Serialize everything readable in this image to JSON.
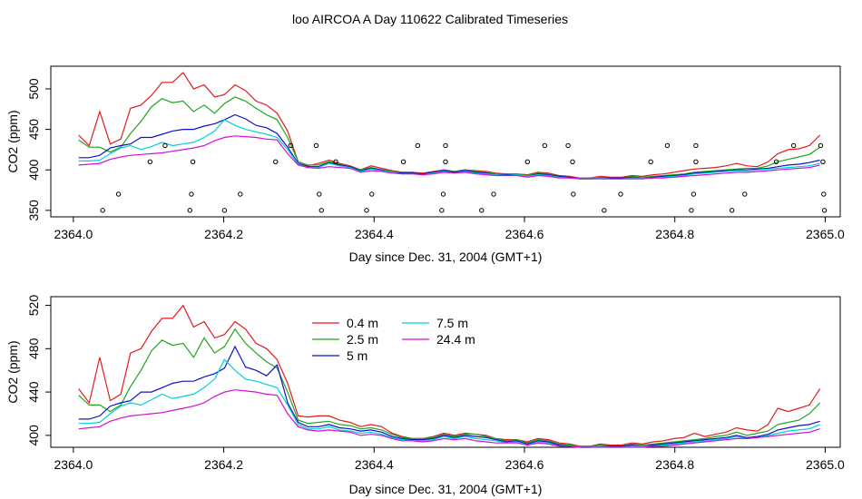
{
  "title": "loo AIRCOA A  Day 110622  Calibrated Timeseries",
  "colors": {
    "series": [
      "#e31a1c",
      "#1fa51f",
      "#1010cc",
      "#00d2d2",
      "#d60fd6"
    ],
    "points": "#000000"
  },
  "chart_data": [
    {
      "type": "line",
      "xlabel": "Day since Dec. 31, 2004 (GMT+1)",
      "ylabel": "CO2 (ppm)",
      "xlim": [
        2363.97,
        2365.02
      ],
      "ylim": [
        342,
        528
      ],
      "xticks": [
        "2364.0",
        "2364.2",
        "2364.4",
        "2364.6",
        "2364.8",
        "2365.0"
      ],
      "yticks": [
        "350",
        "400",
        "450",
        "500"
      ],
      "xtick_values": [
        2364.0,
        2364.2,
        2364.4,
        2364.6,
        2364.8,
        2365.0
      ],
      "ytick_values": [
        350,
        400,
        450,
        500
      ],
      "grid": false,
      "legend": false,
      "x": [
        2364.007,
        2364.021,
        2364.035,
        2364.049,
        2364.063,
        2364.076,
        2364.09,
        2364.104,
        2364.118,
        2364.132,
        2364.146,
        2364.16,
        2364.174,
        2364.188,
        2364.201,
        2364.215,
        2364.229,
        2364.243,
        2364.257,
        2364.271,
        2364.285,
        2364.299,
        2364.312,
        2364.326,
        2364.34,
        2364.354,
        2364.368,
        2364.382,
        2364.396,
        2364.41,
        2364.424,
        2364.437,
        2364.451,
        2364.465,
        2364.479,
        2364.493,
        2364.507,
        2364.521,
        2364.535,
        2364.549,
        2364.562,
        2364.576,
        2364.59,
        2364.604,
        2364.618,
        2364.632,
        2364.646,
        2364.66,
        2364.674,
        2364.687,
        2364.701,
        2364.715,
        2364.729,
        2364.743,
        2364.757,
        2364.771,
        2364.785,
        2364.799,
        2364.812,
        2364.826,
        2364.84,
        2364.854,
        2364.868,
        2364.882,
        2364.896,
        2364.91,
        2364.924,
        2364.937,
        2364.951,
        2364.965,
        2364.979,
        2364.993
      ],
      "series": [
        {
          "values": [
            443,
            430,
            472,
            432,
            438,
            476,
            480,
            492,
            508,
            508,
            520,
            500,
            505,
            490,
            493,
            505,
            498,
            485,
            480,
            470,
            448,
            410,
            405,
            408,
            412,
            408,
            405,
            400,
            405,
            402,
            399,
            397,
            397,
            396,
            398,
            400,
            398,
            400,
            399,
            398,
            396,
            395,
            395,
            394,
            397,
            396,
            393,
            392,
            390,
            390,
            392,
            391,
            391,
            393,
            392,
            394,
            395,
            397,
            399,
            401,
            402,
            403,
            405,
            408,
            405,
            404,
            410,
            420,
            425,
            426,
            430,
            443
          ]
        },
        {
          "values": [
            437,
            428,
            428,
            422,
            428,
            445,
            460,
            478,
            488,
            483,
            485,
            472,
            480,
            470,
            482,
            490,
            485,
            476,
            468,
            462,
            440,
            410,
            406,
            406,
            410,
            407,
            404,
            400,
            403,
            400,
            398,
            396,
            396,
            395,
            397,
            399,
            398,
            400,
            398,
            397,
            395,
            394,
            395,
            393,
            396,
            395,
            392,
            391,
            390,
            390,
            391,
            390,
            390,
            392,
            391,
            392,
            393,
            394,
            395,
            397,
            398,
            399,
            400,
            401,
            402,
            402,
            405,
            410,
            413,
            416,
            419,
            428
          ]
        },
        {
          "values": [
            415,
            415,
            418,
            427,
            430,
            432,
            440,
            440,
            444,
            448,
            450,
            450,
            454,
            457,
            462,
            468,
            463,
            455,
            452,
            445,
            428,
            408,
            404,
            404,
            409,
            406,
            404,
            399,
            402,
            400,
            397,
            396,
            396,
            395,
            397,
            399,
            397,
            399,
            397,
            396,
            394,
            394,
            394,
            392,
            395,
            394,
            392,
            391,
            389,
            389,
            390,
            390,
            390,
            391,
            390,
            391,
            392,
            393,
            394,
            396,
            397,
            398,
            399,
            400,
            400,
            401,
            402,
            404,
            406,
            407,
            409,
            412
          ]
        },
        {
          "values": [
            411,
            411,
            412,
            420,
            427,
            430,
            425,
            429,
            434,
            430,
            432,
            434,
            440,
            448,
            462,
            455,
            450,
            447,
            444,
            440,
            425,
            407,
            403,
            403,
            408,
            405,
            403,
            398,
            401,
            399,
            397,
            395,
            395,
            394,
            396,
            398,
            396,
            398,
            396,
            395,
            394,
            393,
            394,
            392,
            394,
            393,
            391,
            390,
            389,
            389,
            390,
            389,
            389,
            390,
            390,
            390,
            391,
            392,
            393,
            395,
            396,
            397,
            398,
            399,
            399,
            400,
            401,
            402,
            403,
            404,
            405,
            408
          ]
        },
        {
          "values": [
            406,
            407,
            408,
            413,
            416,
            418,
            419,
            420,
            421,
            423,
            425,
            427,
            430,
            436,
            440,
            442,
            441,
            440,
            438,
            437,
            420,
            406,
            403,
            402,
            404,
            403,
            402,
            397,
            399,
            398,
            396,
            395,
            395,
            394,
            395,
            397,
            396,
            397,
            395,
            394,
            393,
            393,
            393,
            391,
            393,
            392,
            390,
            390,
            389,
            389,
            389,
            389,
            389,
            389,
            389,
            390,
            390,
            391,
            392,
            393,
            394,
            395,
            396,
            397,
            397,
            398,
            399,
            400,
            401,
            402,
            403,
            406
          ]
        }
      ],
      "points": {
        "x": [
          2364.039,
          2364.06,
          2364.102,
          2364.122,
          2364.155,
          2364.157,
          2364.159,
          2364.201,
          2364.222,
          2364.269,
          2364.289,
          2364.323,
          2364.327,
          2364.33,
          2364.349,
          2364.39,
          2364.397,
          2364.439,
          2364.458,
          2364.49,
          2364.492,
          2364.495,
          2364.495,
          2364.543,
          2364.559,
          2364.604,
          2364.627,
          2364.658,
          2364.664,
          2364.665,
          2364.706,
          2364.728,
          2364.768,
          2364.79,
          2364.822,
          2364.825,
          2364.828,
          2364.828,
          2364.876,
          2364.893,
          2364.935,
          2364.958,
          2364.994,
          2364.997,
          2364.998,
          2364.999
        ],
        "y": [
          350,
          370,
          410,
          430,
          350,
          370,
          410,
          350,
          370,
          410,
          430,
          430,
          370,
          350,
          410,
          350,
          370,
          410,
          430,
          350,
          370,
          410,
          430,
          350,
          370,
          410,
          430,
          430,
          410,
          370,
          350,
          370,
          410,
          430,
          350,
          370,
          410,
          430,
          350,
          370,
          410,
          430,
          430,
          410,
          370,
          350
        ]
      }
    },
    {
      "type": "line",
      "xlabel": "Day since Dec. 31, 2004 (GMT+1)",
      "ylabel": "CO2 (ppm)",
      "xlim": [
        2363.97,
        2365.02
      ],
      "ylim": [
        389,
        528
      ],
      "xticks": [
        "2364.0",
        "2364.2",
        "2364.4",
        "2364.6",
        "2364.8",
        "2365.0"
      ],
      "yticks": [
        "400",
        "440",
        "480",
        "520"
      ],
      "xtick_values": [
        2364.0,
        2364.2,
        2364.4,
        2364.6,
        2364.8,
        2365.0
      ],
      "ytick_values": [
        400,
        440,
        480,
        520
      ],
      "grid": false,
      "legend": "top-center",
      "legend_labels": [
        "0.4 m",
        "2.5 m",
        "5 m",
        "7.5 m",
        "24.4 m"
      ],
      "x": [
        2364.007,
        2364.021,
        2364.035,
        2364.049,
        2364.063,
        2364.076,
        2364.09,
        2364.104,
        2364.118,
        2364.132,
        2364.146,
        2364.16,
        2364.174,
        2364.188,
        2364.201,
        2364.215,
        2364.229,
        2364.243,
        2364.257,
        2364.271,
        2364.285,
        2364.299,
        2364.312,
        2364.326,
        2364.34,
        2364.354,
        2364.368,
        2364.382,
        2364.396,
        2364.41,
        2364.424,
        2364.437,
        2364.451,
        2364.465,
        2364.479,
        2364.493,
        2364.507,
        2364.521,
        2364.535,
        2364.549,
        2364.562,
        2364.576,
        2364.59,
        2364.604,
        2364.618,
        2364.632,
        2364.646,
        2364.66,
        2364.674,
        2364.687,
        2364.701,
        2364.715,
        2364.729,
        2364.743,
        2364.757,
        2364.771,
        2364.785,
        2364.799,
        2364.812,
        2364.826,
        2364.84,
        2364.854,
        2364.868,
        2364.882,
        2364.896,
        2364.91,
        2364.924,
        2364.937,
        2364.951,
        2364.965,
        2364.979,
        2364.993
      ],
      "series": [
        {
          "name": "0.4 m",
          "values": [
            443,
            430,
            472,
            432,
            438,
            476,
            480,
            496,
            508,
            508,
            520,
            500,
            505,
            490,
            493,
            505,
            498,
            485,
            480,
            470,
            448,
            418,
            417,
            418,
            418,
            414,
            412,
            408,
            410,
            408,
            402,
            399,
            397,
            397,
            399,
            402,
            400,
            402,
            401,
            400,
            397,
            396,
            396,
            394,
            397,
            396,
            393,
            392,
            390,
            390,
            392,
            391,
            391,
            393,
            392,
            394,
            395,
            397,
            398,
            402,
            399,
            401,
            403,
            407,
            405,
            404,
            410,
            425,
            422,
            425,
            428,
            443
          ]
        },
        {
          "name": "2.5 m",
          "values": [
            437,
            428,
            428,
            422,
            428,
            445,
            460,
            478,
            488,
            483,
            485,
            472,
            490,
            476,
            482,
            498,
            485,
            476,
            468,
            462,
            440,
            414,
            411,
            412,
            413,
            410,
            409,
            406,
            407,
            405,
            401,
            398,
            397,
            397,
            398,
            401,
            399,
            401,
            401,
            399,
            397,
            395,
            396,
            393,
            396,
            395,
            392,
            391,
            390,
            390,
            391,
            390,
            390,
            392,
            391,
            392,
            393,
            394,
            395,
            396,
            397,
            399,
            400,
            403,
            400,
            402,
            404,
            410,
            412,
            414,
            420,
            430
          ]
        },
        {
          "name": "5 m",
          "values": [
            415,
            415,
            418,
            427,
            430,
            432,
            440,
            440,
            444,
            448,
            450,
            450,
            454,
            457,
            462,
            482,
            463,
            460,
            455,
            465,
            430,
            412,
            408,
            408,
            410,
            407,
            406,
            404,
            405,
            403,
            399,
            397,
            396,
            396,
            397,
            400,
            398,
            400,
            399,
            398,
            396,
            394,
            395,
            392,
            395,
            394,
            391,
            390,
            389,
            389,
            390,
            390,
            390,
            391,
            390,
            391,
            392,
            393,
            394,
            395,
            396,
            397,
            398,
            400,
            398,
            399,
            401,
            405,
            407,
            409,
            410,
            413
          ]
        },
        {
          "name": "7.5 m",
          "values": [
            411,
            411,
            412,
            420,
            427,
            430,
            428,
            433,
            438,
            434,
            436,
            438,
            444,
            452,
            470,
            460,
            452,
            450,
            447,
            444,
            428,
            410,
            406,
            406,
            408,
            405,
            404,
            402,
            403,
            401,
            398,
            396,
            395,
            395,
            396,
            399,
            397,
            399,
            397,
            396,
            395,
            393,
            394,
            391,
            394,
            393,
            390,
            390,
            389,
            389,
            390,
            389,
            389,
            390,
            390,
            390,
            391,
            392,
            393,
            394,
            395,
            396,
            397,
            399,
            397,
            398,
            400,
            402,
            404,
            405,
            406,
            410
          ]
        },
        {
          "name": "24.4 m",
          "values": [
            406,
            407,
            408,
            413,
            416,
            418,
            419,
            420,
            421,
            423,
            425,
            427,
            430,
            436,
            440,
            442,
            441,
            440,
            438,
            437,
            420,
            408,
            405,
            404,
            405,
            404,
            403,
            400,
            401,
            400,
            397,
            395,
            395,
            394,
            395,
            397,
            396,
            397,
            395,
            394,
            393,
            393,
            393,
            391,
            393,
            392,
            390,
            390,
            389,
            389,
            389,
            389,
            389,
            389,
            389,
            390,
            390,
            391,
            392,
            393,
            394,
            395,
            396,
            397,
            397,
            398,
            399,
            400,
            401,
            402,
            403,
            406
          ]
        }
      ]
    }
  ]
}
